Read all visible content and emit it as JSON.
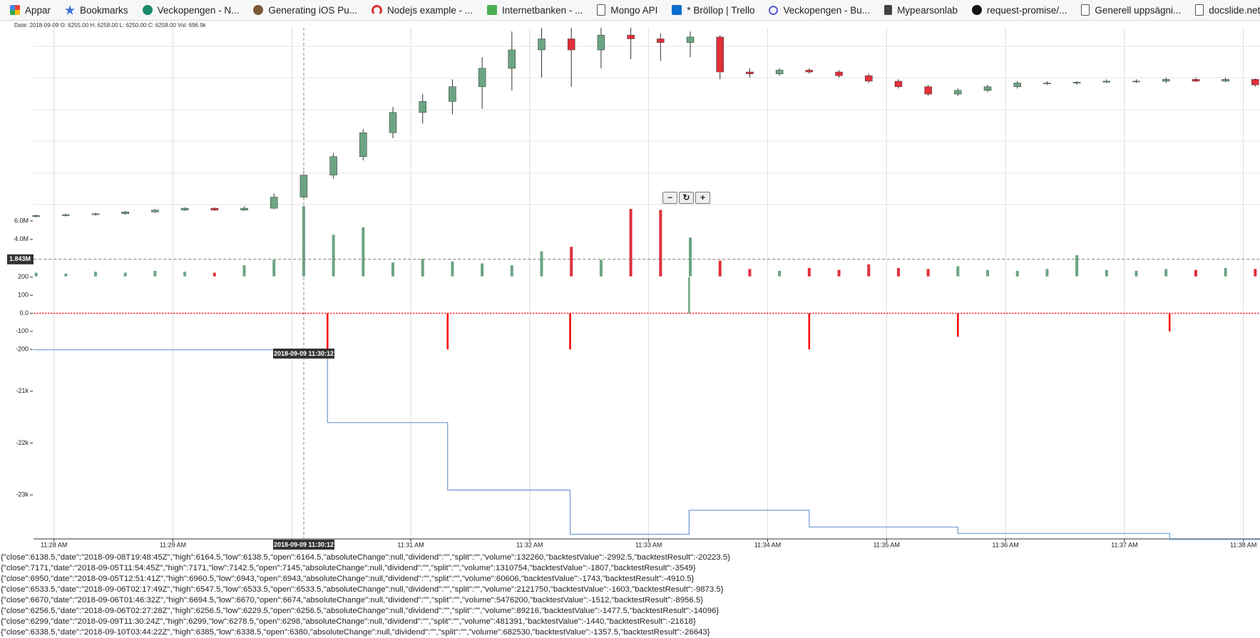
{
  "bookmarks": [
    "Appar",
    "Bookmarks",
    "Veckopengen - N...",
    "Generating iOS Pu...",
    "Nodejs example - ...",
    "Internetbanken - ...",
    "Mongo API",
    "* Bröllop | Trello",
    "Veckopengen - Bu...",
    "Mypearsonlab",
    "request-promise/...",
    "Generell uppsägni...",
    "docslide.net_an-in..."
  ],
  "tooltip": "Date: 2018-09-09 O: 6255.00 H: 6258.00 L: 6250.00 C: 6258.00 Vol: 696.9k",
  "cursor_label": "2018-09-09 11:30:12",
  "chart_data": [
    {
      "type": "candlestick",
      "up_color": "#6BA583",
      "down_color": "#e0303a",
      "ylim": [
        6199,
        6302
      ],
      "candles": [
        [
          27.85,
          6199.5,
          6200.5,
          6199,
          6200
        ],
        [
          28.1,
          6200,
          6201,
          6199.5,
          6200.5
        ],
        [
          28.35,
          6200.5,
          6201.5,
          6200,
          6201
        ],
        [
          28.6,
          6201,
          6202.5,
          6200.5,
          6202
        ],
        [
          28.85,
          6202,
          6203.5,
          6201.5,
          6203
        ],
        [
          29.1,
          6203,
          6204.5,
          6202.5,
          6204
        ],
        [
          29.35,
          6204,
          6204.5,
          6202.5,
          6203
        ],
        [
          29.6,
          6203,
          6205,
          6202.5,
          6204
        ],
        [
          29.85,
          6204,
          6212,
          6203.5,
          6210
        ],
        [
          30.1,
          6210,
          6224,
          6209,
          6222
        ],
        [
          30.35,
          6222,
          6234,
          6220,
          6232
        ],
        [
          30.6,
          6232,
          6247,
          6230,
          6245
        ],
        [
          30.85,
          6245,
          6259,
          6242,
          6256
        ],
        [
          31.1,
          6256,
          6266,
          6250,
          6262
        ],
        [
          31.35,
          6262,
          6274,
          6255,
          6270
        ],
        [
          31.6,
          6270,
          6286,
          6258,
          6280
        ],
        [
          31.85,
          6280,
          6300,
          6268,
          6290
        ],
        [
          32.1,
          6290,
          6302,
          6275,
          6296
        ],
        [
          32.35,
          6296,
          6302,
          6270,
          6290
        ],
        [
          32.6,
          6290,
          6302,
          6280,
          6298
        ],
        [
          32.85,
          6298,
          6302,
          6285,
          6296
        ],
        [
          33.1,
          6296,
          6299,
          6284,
          6294
        ],
        [
          33.35,
          6294,
          6300,
          6286,
          6297
        ],
        [
          33.6,
          6297,
          6298,
          6274,
          6278
        ],
        [
          33.85,
          6278,
          6280,
          6275,
          6277
        ],
        [
          34.1,
          6277,
          6280,
          6276,
          6279
        ],
        [
          34.35,
          6279,
          6280,
          6277,
          6278
        ],
        [
          34.6,
          6278,
          6279,
          6275,
          6276
        ],
        [
          34.85,
          6276,
          6277,
          6272,
          6273
        ],
        [
          35.1,
          6273,
          6274,
          6269,
          6270
        ],
        [
          35.35,
          6270,
          6271,
          6265,
          6266
        ],
        [
          35.6,
          6266,
          6269,
          6265,
          6268
        ],
        [
          35.85,
          6268,
          6271,
          6267,
          6270
        ],
        [
          36.1,
          6270,
          6273,
          6269,
          6272
        ],
        [
          36.35,
          6272,
          6273,
          6271,
          6272
        ],
        [
          36.6,
          6272,
          6273,
          6271,
          6272.5
        ],
        [
          36.85,
          6272.5,
          6274,
          6272,
          6273
        ],
        [
          37.1,
          6273,
          6274,
          6272,
          6273
        ],
        [
          37.35,
          6273,
          6275,
          6272,
          6274
        ],
        [
          37.6,
          6274,
          6275,
          6272.5,
          6273
        ],
        [
          37.85,
          6273,
          6275,
          6272.5,
          6274
        ],
        [
          38.1,
          6274,
          6274.5,
          6270,
          6271
        ]
      ]
    },
    {
      "type": "bar",
      "ylim": [
        0,
        7800000
      ],
      "yticks": [
        {
          "value": 4000000,
          "label": "4.0M"
        },
        {
          "value": 6000000,
          "label": "6.0M"
        }
      ],
      "crosshair": {
        "value": 1843000,
        "label": "1.843M"
      },
      "values": [
        400000,
        300000,
        500000,
        400000,
        600000,
        500000,
        400000,
        1200000,
        1800000,
        7600000,
        4500000,
        5300000,
        1500000,
        1900000,
        1600000,
        1400000,
        1200000,
        2700000,
        3200000,
        1800000,
        7300000,
        7200000,
        4200000,
        1700000,
        800000,
        600000,
        900000,
        700000,
        1300000,
        900000,
        800000,
        1100000,
        700000,
        600000,
        800000,
        2300000,
        700000,
        600000,
        800000,
        700000,
        900000,
        800000
      ]
    },
    {
      "type": "bar",
      "ylim": [
        -200,
        200
      ],
      "up_color": "#6BA583",
      "down_color": "#ff0000",
      "yticks": [
        200,
        100,
        {
          "value": 0,
          "label": "0.0"
        },
        -100,
        -200
      ],
      "x": [
        30.3,
        31.31,
        32.34,
        33.34,
        34.35,
        35.6,
        37.38
      ],
      "values": [
        -200,
        -200,
        -200,
        200,
        -200,
        -130,
        -100
      ]
    },
    {
      "type": "step",
      "color": "#6a9bd1",
      "ylim": [
        -23840,
        -19650
      ],
      "xlim": [
        27.83,
        38.14
      ],
      "yticks": [
        {
          "value": -21000,
          "label": "-21k"
        },
        {
          "value": -22000,
          "label": "-22k"
        },
        {
          "value": -23000,
          "label": "-23k"
        }
      ],
      "xticks": [
        {
          "value": 28,
          "label": "11:28 AM"
        },
        {
          "value": 29,
          "label": "11:29 AM"
        },
        {
          "value": 30,
          "label": "11:30 AM"
        },
        {
          "value": 31,
          "label": "11:31 AM"
        },
        {
          "value": 32,
          "label": "11:32 AM"
        },
        {
          "value": 33,
          "label": "11:33 AM"
        },
        {
          "value": 34,
          "label": "11:34 AM"
        },
        {
          "value": 35,
          "label": "11:35 AM"
        },
        {
          "value": 36,
          "label": "11:36 AM"
        },
        {
          "value": 37,
          "label": "11:37 AM"
        },
        {
          "value": 38,
          "label": "11:38 AM"
        }
      ],
      "x": [
        27.83,
        30.3,
        31.31,
        32.34,
        33.34,
        34.35,
        35.6,
        37.38
      ],
      "values": [
        -20200,
        -21605,
        -22907,
        -23760,
        -23295,
        -23620,
        -23744,
        -23860
      ]
    }
  ],
  "log_lines": [
    "{\"close\":6138.5,\"date\":\"2018-09-08T19:48:45Z\",\"high\":6164.5,\"low\":6138.5,\"open\":6164.5,\"absoluteChange\":null,\"dividend\":\"\",\"split\":\"\",\"volume\":132260,\"backtestValue\":-2992.5,\"backtestResult\":-20223.5}",
    "{\"close\":7171,\"date\":\"2018-09-05T11:54:45Z\",\"high\":7171,\"low\":7142.5,\"open\":7145,\"absoluteChange\":null,\"dividend\":\"\",\"split\":\"\",\"volume\":1310754,\"backtestValue\":-1807,\"backtestResult\":-3549}",
    "{\"close\":6950,\"date\":\"2018-09-05T12:51:41Z\",\"high\":6960.5,\"low\":6943,\"open\":6943,\"absoluteChange\":null,\"dividend\":\"\",\"split\":\"\",\"volume\":60606,\"backtestValue\":-1743,\"backtestResult\":-4910.5}",
    "{\"close\":6533.5,\"date\":\"2018-09-06T02:17:49Z\",\"high\":6547.5,\"low\":6533.5,\"open\":6533.5,\"absoluteChange\":null,\"dividend\":\"\",\"split\":\"\",\"volume\":2121750,\"backtestValue\":-1603,\"backtestResult\":-9873.5}",
    "{\"close\":6670,\"date\":\"2018-09-06T01:46:32Z\",\"high\":6694.5,\"low\":6670,\"open\":6674,\"absoluteChange\":null,\"dividend\":\"\",\"split\":\"\",\"volume\":5476200,\"backtestValue\":-1512,\"backtestResult\":-8956.5}",
    "{\"close\":6256.5,\"date\":\"2018-09-06T02:27:28Z\",\"high\":6256.5,\"low\":6229.5,\"open\":6256.5,\"absoluteChange\":null,\"dividend\":\"\",\"split\":\"\",\"volume\":89216,\"backtestValue\":-1477.5,\"backtestResult\":-14096}",
    "{\"close\":6299,\"date\":\"2018-09-09T11:30:24Z\",\"high\":6299,\"low\":6278.5,\"open\":6298,\"absoluteChange\":null,\"dividend\":\"\",\"split\":\"\",\"volume\":481391,\"backtestValue\":-1440,\"backtestResult\":-21618}",
    "{\"close\":6338.5,\"date\":\"2018-09-10T03:44:22Z\",\"high\":6385,\"low\":6338.5,\"open\":6380,\"absoluteChange\":null,\"dividend\":\"\",\"split\":\"\",\"volume\":682530,\"backtestValue\":-1357.5,\"backtestResult\":-26643}"
  ]
}
